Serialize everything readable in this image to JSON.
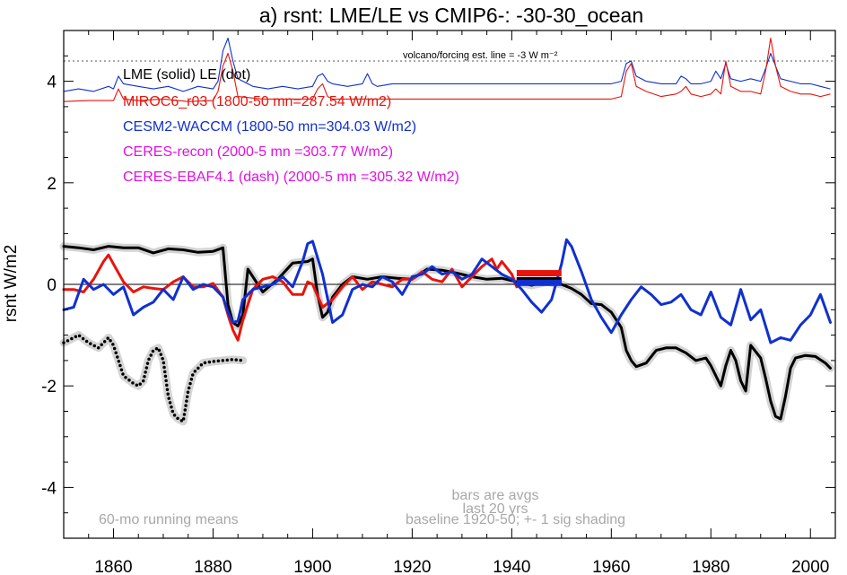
{
  "chart_data": {
    "type": "line",
    "title": "a) rsnt: LME/LE vs CMIP6-: -30-30_ocean",
    "ylabel": "rsnt W/m2",
    "xlabel": "",
    "xlim": [
      1850,
      2005
    ],
    "ylim": [
      -5,
      5
    ],
    "xticks": [
      1860,
      1880,
      1900,
      1920,
      1940,
      1960,
      1980,
      2000
    ],
    "yticks": [
      -4,
      -2,
      0,
      2,
      4
    ],
    "zero_line": 0,
    "legend_lines": [
      {
        "text": "LME (solid)   LE (dot)",
        "color": "#000000"
      },
      {
        "text": "MIROC6_r03 (1800-50 mn=287.54 W/m2)",
        "color": "#e8140c"
      },
      {
        "text": "CESM2-WACCM (1800-50 mn=304.03 W/m2)",
        "color": "#1030d0"
      },
      {
        "text": "CERES-recon (2000-5 mn =303.77 W/m2)",
        "color": "#e010e0"
      },
      {
        "text": "CERES-EBAF4.1 (dash) (2000-5 mn =305.32 W/m2)",
        "color": "#e010e0"
      }
    ],
    "annotations": {
      "volcano": "volcano/forcing est.      line = -3 W m⁻²",
      "bars_note": [
        "bars are avgs",
        "last 20 yrs"
      ],
      "baseline_note": "baseline 1920-50; +- 1 sig shading",
      "running_means": "60-mo running means"
    },
    "volcano_ref_line": 4.4,
    "series": [
      {
        "name": "LME",
        "color": "#000000",
        "style": "solid",
        "shading": true,
        "x": [
          1850,
          1853,
          1856,
          1859,
          1862,
          1865,
          1868,
          1871,
          1874,
          1877,
          1880,
          1882,
          1883,
          1884,
          1885,
          1886,
          1887,
          1888,
          1890,
          1893,
          1896,
          1899,
          1900,
          1901,
          1902,
          1903,
          1904,
          1906,
          1908,
          1911,
          1914,
          1917,
          1920,
          1923,
          1926,
          1929,
          1932,
          1935,
          1938,
          1941,
          1944,
          1947,
          1950,
          1952,
          1954,
          1956,
          1958,
          1960,
          1962,
          1963,
          1964,
          1965,
          1967,
          1969,
          1971,
          1973,
          1975,
          1977,
          1979,
          1980,
          1981,
          1982,
          1983,
          1984,
          1985,
          1986,
          1987,
          1988,
          1990,
          1991,
          1992,
          1993,
          1994,
          1995,
          1996,
          1997,
          1999,
          2001,
          2003,
          2004
        ],
        "values": [
          0.75,
          0.72,
          0.68,
          0.75,
          0.72,
          0.72,
          0.62,
          0.7,
          0.68,
          0.63,
          0.65,
          0.72,
          -0.4,
          -0.75,
          -0.82,
          -0.6,
          0.3,
          0.15,
          -0.15,
          0.1,
          0.42,
          0.45,
          0.5,
          -0.2,
          -0.65,
          -0.55,
          -0.25,
          0.0,
          0.15,
          0.1,
          0.15,
          0.12,
          0.1,
          0.3,
          0.28,
          0.22,
          0.15,
          0.1,
          0.12,
          0.05,
          -0.02,
          0.05,
          0.0,
          -0.08,
          -0.2,
          -0.38,
          -0.4,
          -0.55,
          -0.85,
          -1.3,
          -1.5,
          -1.62,
          -1.55,
          -1.3,
          -1.25,
          -1.25,
          -1.35,
          -1.5,
          -1.45,
          -1.6,
          -1.8,
          -2.0,
          -1.6,
          -1.3,
          -1.5,
          -1.9,
          -2.1,
          -1.2,
          -1.45,
          -1.85,
          -2.3,
          -2.6,
          -2.65,
          -2.2,
          -1.65,
          -1.45,
          -1.4,
          -1.42,
          -1.55,
          -1.65
        ]
      },
      {
        "name": "LE",
        "color": "#000000",
        "style": "dot",
        "shading": true,
        "x": [
          1850,
          1852,
          1853,
          1855,
          1857,
          1859,
          1860,
          1862,
          1864,
          1865,
          1866,
          1867,
          1868,
          1869,
          1870,
          1871,
          1872,
          1873,
          1874,
          1875,
          1876,
          1878,
          1880,
          1882,
          1884,
          1886
        ],
        "values": [
          -1.15,
          -1.05,
          -1.0,
          -1.15,
          -1.25,
          -1.05,
          -1.2,
          -1.8,
          -1.95,
          -2.0,
          -1.9,
          -1.5,
          -1.3,
          -1.25,
          -1.5,
          -2.2,
          -2.55,
          -2.65,
          -2.7,
          -2.1,
          -1.75,
          -1.55,
          -1.52,
          -1.5,
          -1.48,
          -1.5
        ]
      },
      {
        "name": "MIROC6_r03",
        "color": "#e8140c",
        "style": "solid",
        "shading": false,
        "x": [
          1850,
          1852,
          1854,
          1856,
          1858,
          1859,
          1860,
          1862,
          1864,
          1866,
          1868,
          1870,
          1872,
          1874,
          1876,
          1878,
          1880,
          1882,
          1883,
          1884,
          1885,
          1886,
          1888,
          1890,
          1892,
          1894,
          1896,
          1898,
          1899,
          1900,
          1902,
          1904,
          1906,
          1908,
          1910,
          1912,
          1914,
          1916,
          1918,
          1920,
          1922,
          1924,
          1926,
          1928,
          1930,
          1932,
          1934,
          1936,
          1937,
          1938,
          1940,
          1941
        ],
        "values": [
          -0.1,
          -0.1,
          -0.15,
          0.1,
          0.45,
          0.58,
          0.4,
          0.05,
          -0.15,
          -0.05,
          -0.08,
          -0.1,
          0.05,
          0.15,
          -0.05,
          -0.05,
          0.02,
          -0.25,
          -0.6,
          -0.9,
          -1.1,
          -0.7,
          -0.1,
          0.1,
          0.15,
          0.05,
          -0.2,
          -0.2,
          0.05,
          0.0,
          -0.45,
          -0.3,
          -0.05,
          0.15,
          -0.1,
          0.05,
          0.0,
          -0.05,
          0.1,
          0.1,
          0.25,
          0.1,
          0.05,
          0.3,
          -0.05,
          0.15,
          0.35,
          0.5,
          0.3,
          0.45,
          0.2,
          -0.05
        ]
      },
      {
        "name": "CESM2-WACCM",
        "color": "#1030d0",
        "style": "solid",
        "shading": false,
        "x": [
          1850,
          1852,
          1854,
          1856,
          1858,
          1860,
          1862,
          1864,
          1866,
          1868,
          1870,
          1872,
          1874,
          1876,
          1878,
          1880,
          1882,
          1883,
          1884,
          1885,
          1886,
          1888,
          1890,
          1892,
          1894,
          1896,
          1898,
          1899,
          1900,
          1902,
          1904,
          1906,
          1908,
          1910,
          1912,
          1914,
          1916,
          1918,
          1920,
          1922,
          1924,
          1926,
          1928,
          1930,
          1932,
          1934,
          1936,
          1938,
          1940,
          1942,
          1944,
          1946,
          1948,
          1950,
          1951,
          1952,
          1954,
          1956,
          1958,
          1960,
          1962,
          1964,
          1966,
          1968,
          1970,
          1972,
          1974,
          1976,
          1978,
          1980,
          1982,
          1984,
          1986,
          1988,
          1990,
          1992,
          1994,
          1996,
          1998,
          2000,
          2001,
          2002,
          2004
        ],
        "values": [
          -0.5,
          -0.45,
          0.1,
          -0.1,
          0.0,
          -0.2,
          -0.05,
          -0.6,
          -0.45,
          -0.35,
          -0.1,
          -0.3,
          0.15,
          -0.1,
          0.0,
          -0.05,
          -0.25,
          -0.55,
          -0.75,
          -0.72,
          -0.3,
          -0.1,
          -0.05,
          0.0,
          0.15,
          -0.05,
          0.45,
          0.8,
          0.85,
          0.2,
          -0.75,
          -0.6,
          -0.1,
          0.0,
          -0.05,
          0.15,
          0.05,
          -0.2,
          0.15,
          0.2,
          0.35,
          0.2,
          0.25,
          0.1,
          0.2,
          0.5,
          0.35,
          0.2,
          0.1,
          -0.1,
          -0.35,
          -0.55,
          -0.3,
          0.4,
          0.88,
          0.75,
          0.25,
          -0.3,
          -0.65,
          -0.95,
          -0.6,
          -0.3,
          -0.05,
          -0.2,
          -0.4,
          -0.35,
          -0.2,
          -0.5,
          -0.6,
          -0.15,
          -0.65,
          -0.8,
          -0.1,
          -0.7,
          -0.5,
          -1.15,
          -1.05,
          -1.1,
          -0.8,
          -0.6,
          -0.4,
          -0.2,
          -0.75
        ]
      }
    ],
    "volcano_series": [
      {
        "name": "CESM2-WACCM volcano",
        "color": "#1030d0",
        "x": [
          1850,
          1853,
          1856,
          1859,
          1860,
          1861,
          1862,
          1865,
          1868,
          1871,
          1874,
          1877,
          1880,
          1881,
          1882,
          1883,
          1884,
          1885,
          1888,
          1891,
          1894,
          1897,
          1900,
          1901,
          1902,
          1903,
          1904,
          1907,
          1910,
          1911,
          1912,
          1913,
          1916,
          1920,
          1925,
          1930,
          1935,
          1940,
          1945,
          1950,
          1955,
          1960,
          1962,
          1963,
          1964,
          1965,
          1967,
          1970,
          1973,
          1974,
          1975,
          1976,
          1978,
          1980,
          1981,
          1982,
          1983,
          1984,
          1986,
          1988,
          1990,
          1991,
          1992,
          1993,
          1994,
          1996,
          1998,
          2000,
          2002,
          2004
        ],
        "values": [
          3.8,
          3.85,
          3.8,
          3.9,
          3.85,
          4.1,
          3.95,
          3.9,
          3.85,
          3.9,
          3.8,
          3.9,
          3.85,
          4.0,
          4.6,
          4.85,
          4.4,
          4.05,
          3.9,
          3.85,
          3.9,
          3.85,
          3.9,
          4.1,
          4.15,
          4.0,
          3.95,
          3.9,
          3.95,
          4.15,
          3.95,
          3.9,
          3.95,
          3.95,
          3.95,
          3.95,
          3.95,
          3.95,
          3.95,
          3.95,
          3.95,
          3.95,
          4.0,
          4.35,
          4.4,
          4.1,
          4.0,
          3.95,
          3.95,
          4.1,
          4.05,
          3.95,
          3.95,
          4.0,
          4.2,
          4.05,
          4.35,
          4.05,
          4.0,
          4.05,
          4.0,
          4.25,
          4.55,
          4.3,
          4.05,
          4.0,
          3.95,
          3.95,
          3.9,
          3.85
        ]
      },
      {
        "name": "MIROC6_r03 volcano",
        "color": "#e8140c",
        "x": [
          1850,
          1855,
          1860,
          1861,
          1862,
          1865,
          1870,
          1875,
          1880,
          1881,
          1882,
          1883,
          1884,
          1885,
          1890,
          1895,
          1900,
          1901,
          1902,
          1903,
          1904,
          1910,
          1915,
          1920,
          1925,
          1930,
          1935,
          1940,
          1945,
          1950,
          1955,
          1960,
          1962,
          1963,
          1964,
          1965,
          1967,
          1970,
          1973,
          1974,
          1975,
          1976,
          1978,
          1980,
          1981,
          1982,
          1983,
          1984,
          1986,
          1988,
          1990,
          1991,
          1992,
          1993,
          1994,
          1996,
          1998,
          2000,
          2002,
          2004
        ],
        "values": [
          3.6,
          3.62,
          3.62,
          3.85,
          3.65,
          3.62,
          3.65,
          3.6,
          3.62,
          3.8,
          4.3,
          4.55,
          4.2,
          3.7,
          3.65,
          3.65,
          3.65,
          3.85,
          3.95,
          3.7,
          3.65,
          3.65,
          3.65,
          3.65,
          3.65,
          3.65,
          3.65,
          3.65,
          3.65,
          3.65,
          3.65,
          3.65,
          3.7,
          4.2,
          4.35,
          3.9,
          3.8,
          3.7,
          3.75,
          3.8,
          3.9,
          3.75,
          3.7,
          3.75,
          3.85,
          3.75,
          4.4,
          3.9,
          3.8,
          3.8,
          3.75,
          4.2,
          4.85,
          4.3,
          3.9,
          3.8,
          3.75,
          3.75,
          3.7,
          3.75
        ]
      }
    ],
    "avg_bars": [
      {
        "name": "MIROC6_r03",
        "color": "#e8140c",
        "value": 0.22,
        "x": [
          1941,
          1950
        ]
      },
      {
        "name": "LME",
        "color": "#000000",
        "value": 0.08,
        "x": [
          1941,
          1950
        ]
      },
      {
        "name": "CESM2-WACCM",
        "color": "#1030d0",
        "value": 0.03,
        "x": [
          1941,
          1950
        ]
      }
    ]
  }
}
